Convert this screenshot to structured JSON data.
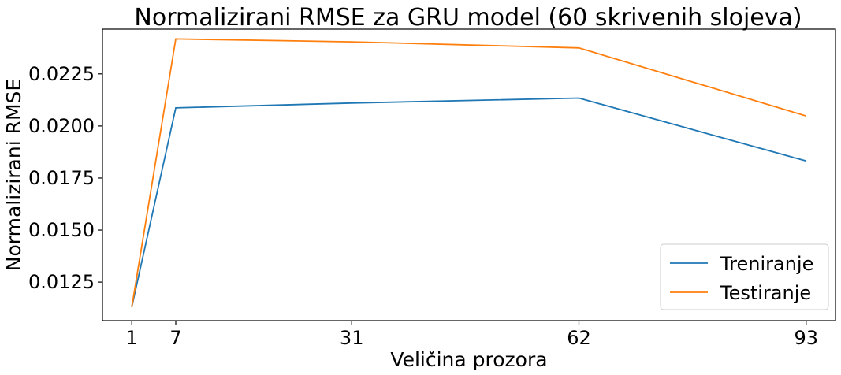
{
  "chart_data": {
    "type": "line",
    "title": "Normalizirani RMSE za GRU model (60 skrivenih slojeva)",
    "xlabel": "Veličina prozora",
    "ylabel": "Normalizirani RMSE",
    "x": [
      1,
      7,
      31,
      62,
      93
    ],
    "xticks": [
      "1",
      "7",
      "31",
      "62",
      "93"
    ],
    "yticks": [
      "0.0125",
      "0.0150",
      "0.0175",
      "0.0200",
      "0.0225"
    ],
    "ytick_values": [
      0.0125,
      0.015,
      0.0175,
      0.02,
      0.0225
    ],
    "xlim": [
      -3,
      97
    ],
    "ylim": [
      0.01065,
      0.02465
    ],
    "series": [
      {
        "name": "Treniranje",
        "color": "#1f77b4",
        "values": [
          0.0113,
          0.02087,
          0.0211,
          0.02134,
          0.01832
        ]
      },
      {
        "name": "Testiranje",
        "color": "#ff7f0e",
        "values": [
          0.0113,
          0.02418,
          0.02404,
          0.02375,
          0.02048
        ]
      }
    ],
    "legend": "lower-right",
    "grid": false
  }
}
